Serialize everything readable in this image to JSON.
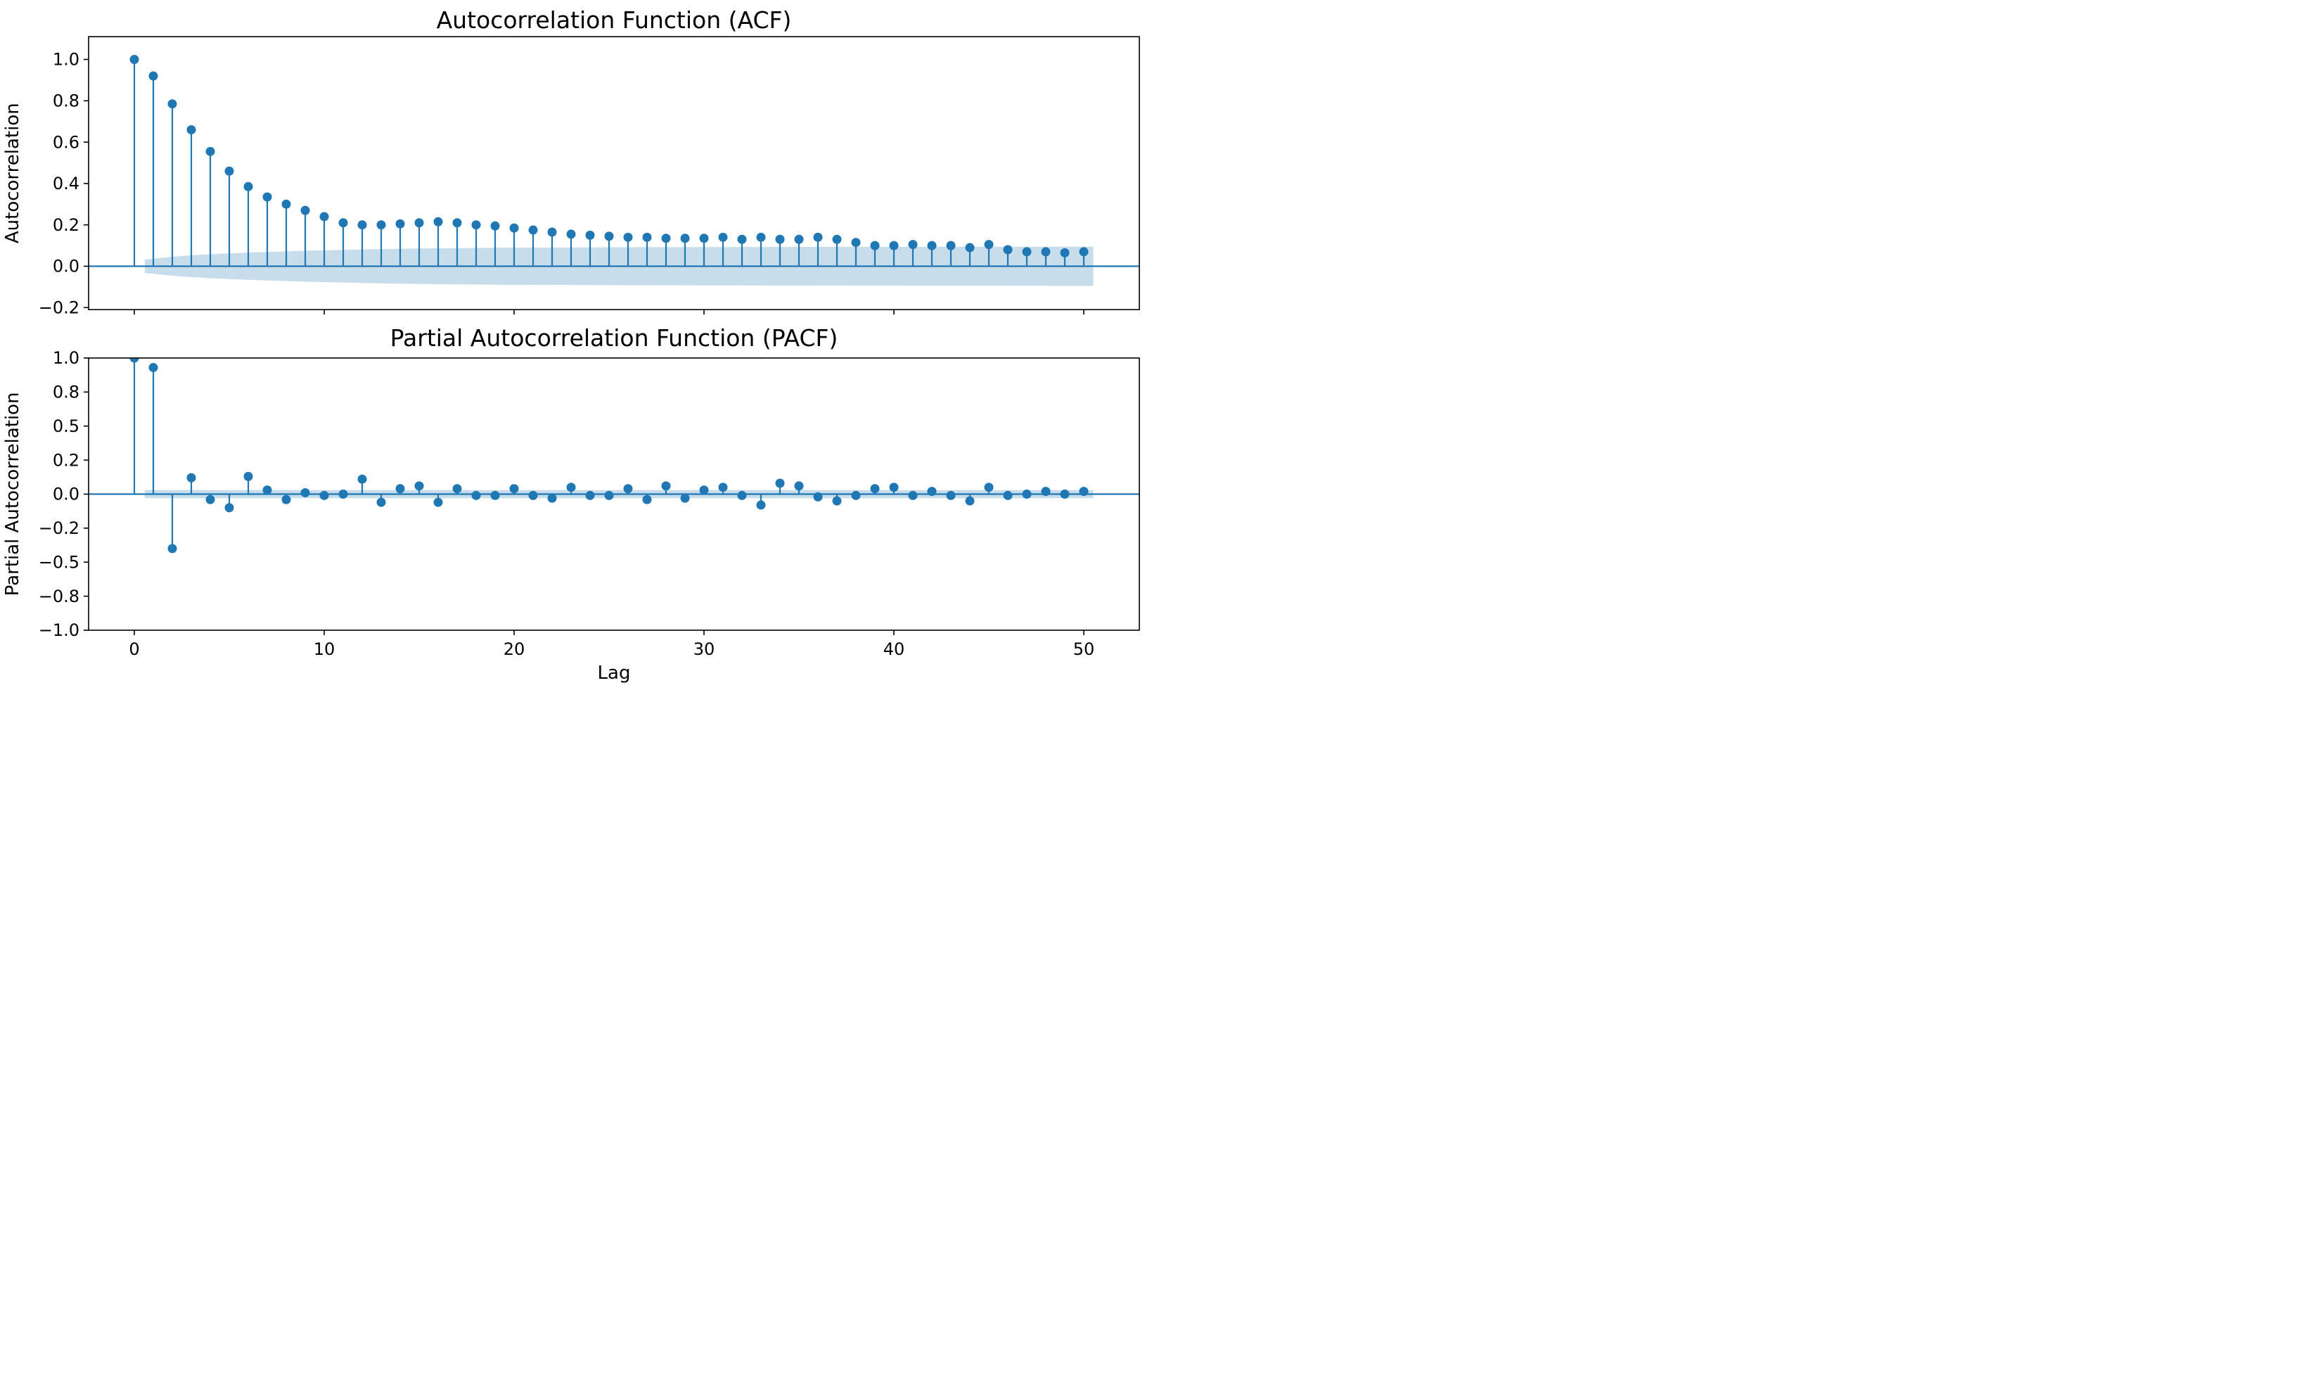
{
  "figure": {
    "background": "#ffffff",
    "accent_color": "#1f77b4",
    "band_color": "#c7ddec",
    "spine_color": "#000000",
    "xlabel": "Lag"
  },
  "chart_data": [
    {
      "type": "stem",
      "title": "Autocorrelation Function (ACF)",
      "ylabel": "Autocorrelation",
      "xlabel": "",
      "x": [
        0,
        1,
        2,
        3,
        4,
        5,
        6,
        7,
        8,
        9,
        10,
        11,
        12,
        13,
        14,
        15,
        16,
        17,
        18,
        19,
        20,
        21,
        22,
        23,
        24,
        25,
        26,
        27,
        28,
        29,
        30,
        31,
        32,
        33,
        34,
        35,
        36,
        37,
        38,
        39,
        40,
        41,
        42,
        43,
        44,
        45,
        46,
        47,
        48,
        49,
        50
      ],
      "values": [
        1.0,
        0.92,
        0.785,
        0.66,
        0.555,
        0.46,
        0.385,
        0.335,
        0.3,
        0.27,
        0.24,
        0.21,
        0.2,
        0.2,
        0.205,
        0.21,
        0.215,
        0.21,
        0.2,
        0.195,
        0.185,
        0.175,
        0.165,
        0.155,
        0.15,
        0.145,
        0.14,
        0.14,
        0.135,
        0.135,
        0.135,
        0.14,
        0.13,
        0.14,
        0.13,
        0.13,
        0.14,
        0.13,
        0.115,
        0.1,
        0.1,
        0.105,
        0.1,
        0.1,
        0.09,
        0.105,
        0.08,
        0.07,
        0.07,
        0.065,
        0.07
      ],
      "xlim": [
        -2.5,
        53
      ],
      "ylim": [
        -0.21,
        1.11
      ],
      "ytick_values": [
        1.0,
        0.8,
        0.6,
        0.4,
        0.2,
        0.0,
        -0.2
      ],
      "ytick_labels": [
        "1.0",
        "0.8",
        "0.6",
        "0.4",
        "0.2",
        "0.0",
        "−0.2"
      ],
      "xtick_values": [
        0,
        10,
        20,
        30,
        40,
        50
      ],
      "xtick_labels": [
        "",
        "",
        "",
        "",
        "",
        ""
      ],
      "grid": false,
      "conf_band": {
        "lags": [
          0.55,
          1,
          2,
          3,
          4,
          5,
          6,
          8,
          10,
          12,
          15,
          20,
          25,
          30,
          35,
          40,
          45,
          50.5
        ],
        "halfwidth": [
          0.033,
          0.036,
          0.046,
          0.053,
          0.058,
          0.062,
          0.066,
          0.072,
          0.077,
          0.081,
          0.086,
          0.09,
          0.0915,
          0.0925,
          0.0935,
          0.094,
          0.0945,
          0.095
        ]
      }
    },
    {
      "type": "stem",
      "title": "Partial Autocorrelation Function (PACF)",
      "ylabel": "Partial Autocorrelation",
      "xlabel": "Lag",
      "x": [
        0,
        1,
        2,
        3,
        4,
        5,
        6,
        7,
        8,
        9,
        10,
        11,
        12,
        13,
        14,
        15,
        16,
        17,
        18,
        19,
        20,
        21,
        22,
        23,
        24,
        25,
        26,
        27,
        28,
        29,
        30,
        31,
        32,
        33,
        34,
        35,
        36,
        37,
        38,
        39,
        40,
        41,
        42,
        43,
        44,
        45,
        46,
        47,
        48,
        49,
        50
      ],
      "values": [
        1.0,
        0.93,
        -0.4,
        0.12,
        -0.04,
        -0.1,
        0.13,
        0.03,
        -0.04,
        0.01,
        -0.01,
        0.0,
        0.11,
        -0.06,
        0.04,
        0.06,
        -0.06,
        0.04,
        -0.01,
        -0.01,
        0.04,
        -0.01,
        -0.03,
        0.05,
        -0.01,
        -0.01,
        0.04,
        -0.04,
        0.06,
        -0.03,
        0.03,
        0.05,
        -0.01,
        -0.08,
        0.08,
        0.06,
        -0.02,
        -0.05,
        -0.01,
        0.04,
        0.05,
        -0.01,
        0.02,
        -0.01,
        -0.05,
        0.05,
        -0.01,
        0.0,
        0.02,
        0.0,
        0.02
      ],
      "xlim": [
        -2.5,
        53
      ],
      "ylim": [
        -1.0,
        1.0
      ],
      "ytick_values": [
        1.0,
        0.75,
        0.5,
        0.25,
        0.0,
        -0.25,
        -0.5,
        -0.75,
        -1.0
      ],
      "ytick_labels": [
        "1.0",
        "0.8",
        "0.5",
        "0.2",
        "0.0",
        "−0.2",
        "−0.5",
        "−0.8",
        "−1.0"
      ],
      "xtick_values": [
        0,
        10,
        20,
        30,
        40,
        50
      ],
      "xtick_labels": [
        "0",
        "10",
        "20",
        "30",
        "40",
        "50"
      ],
      "grid": false,
      "conf_band": {
        "lags": [
          0.55,
          50.5
        ],
        "halfwidth": [
          0.03,
          0.03
        ]
      }
    }
  ]
}
